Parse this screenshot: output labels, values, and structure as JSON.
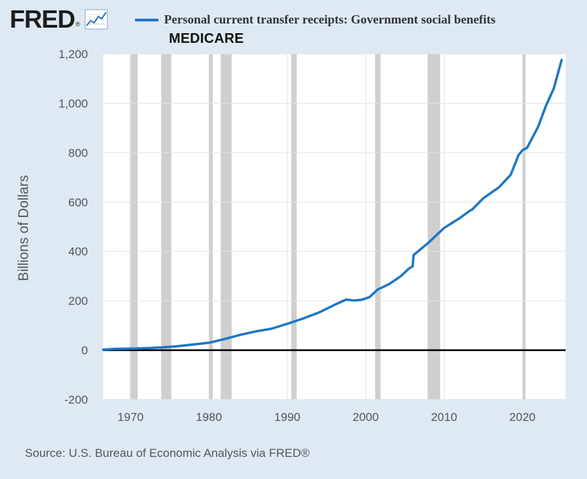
{
  "logo": {
    "text": "FRED",
    "reg_mark": "®",
    "icon": "line-chart-icon"
  },
  "legend": {
    "label": "Personal current transfer receipts: Government social benefits",
    "color": "#1f77c4"
  },
  "subtitle": "MEDICARE",
  "footer": {
    "source": "Source: U.S. Bureau of Economic Analysis via FRED®"
  },
  "colors": {
    "background": "#dee9f4",
    "plot_background": "#ffffff",
    "series": "#1f77c4",
    "recession": "#cfcfcf",
    "zero_line": "#000000"
  },
  "chart_data": {
    "type": "line",
    "title": "Personal current transfer receipts: Government social benefits",
    "subtitle": "MEDICARE",
    "xlabel": "",
    "ylabel": "Billions of Dollars",
    "xlim": [
      1966.5,
      2025.5
    ],
    "ylim": [
      -200,
      1200
    ],
    "x_ticks": [
      1970,
      1980,
      1990,
      2000,
      2010,
      2020
    ],
    "y_ticks": [
      -200,
      0,
      200,
      400,
      600,
      800,
      1000,
      1200
    ],
    "y_tick_labels": [
      "-200",
      "0",
      "200",
      "400",
      "600",
      "800",
      "1,000",
      "1,200"
    ],
    "grid": true,
    "zero_line": true,
    "recessions": [
      [
        1969.9,
        1970.9
      ],
      [
        1973.9,
        1975.2
      ],
      [
        1980.0,
        1980.5
      ],
      [
        1981.5,
        1982.9
      ],
      [
        1990.5,
        1991.2
      ],
      [
        2001.2,
        2001.9
      ],
      [
        2007.9,
        2009.5
      ],
      [
        2020.0,
        2020.4
      ]
    ],
    "series": [
      {
        "name": "Personal current transfer receipts: Government social benefits",
        "x": [
          1966.5,
          1968,
          1970,
          1972,
          1974,
          1976,
          1978,
          1980,
          1982,
          1984,
          1986,
          1988,
          1990,
          1992,
          1994,
          1996,
          1997.5,
          1998.5,
          1999.5,
          2000.5,
          2001.5,
          2003,
          2004.5,
          2005.5,
          2006.0,
          2006.1,
          2008,
          2010,
          2012,
          2013.3,
          2013.6,
          2015,
          2017,
          2018.5,
          2019.5,
          2020.0,
          2020.6,
          2022,
          2023,
          2024,
          2025
        ],
        "values": [
          2,
          5,
          6,
          8,
          11,
          16,
          23,
          30,
          45,
          62,
          76,
          87,
          107,
          128,
          152,
          183,
          205,
          201,
          204,
          215,
          245,
          268,
          300,
          330,
          340,
          385,
          435,
          495,
          535,
          565,
          570,
          615,
          660,
          710,
          790,
          810,
          820,
          905,
          990,
          1060,
          1175
        ]
      }
    ]
  }
}
